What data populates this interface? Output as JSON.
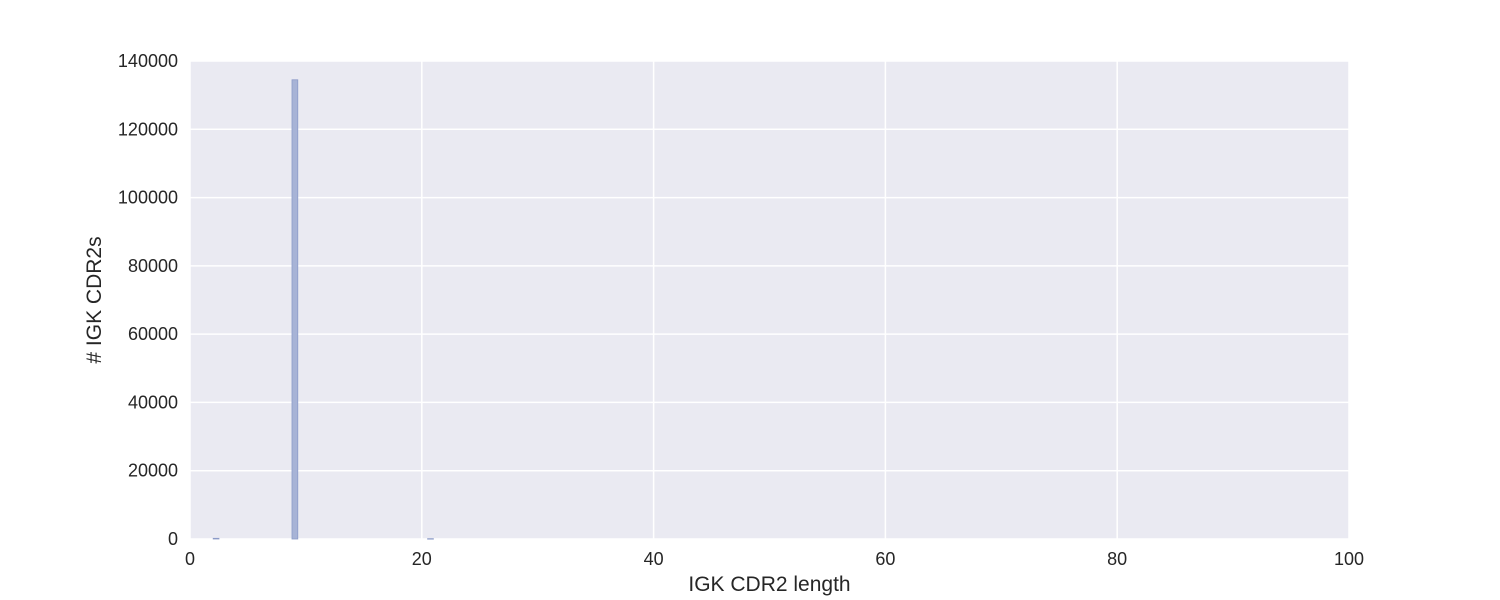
{
  "chart_data": {
    "type": "bar",
    "xlabel": "IGK CDR2 length",
    "ylabel": "# IGK CDR2s",
    "xlim": [
      0,
      100
    ],
    "ylim": [
      0,
      140000
    ],
    "xticks": [
      "0",
      "20",
      "40",
      "60",
      "80",
      "100"
    ],
    "yticks": [
      "0",
      "20000",
      "40000",
      "60000",
      "80000",
      "100000",
      "120000",
      "140000"
    ],
    "grid": true,
    "bins": [
      {
        "x0": 2,
        "x1": 2.5,
        "value": 200
      },
      {
        "x0": 8.8,
        "x1": 9.3,
        "value": 134500
      },
      {
        "x0": 20.5,
        "x1": 21.0,
        "value": 100
      }
    ],
    "colors": {
      "plot_background": "#eaeaf2",
      "grid": "#ffffff",
      "bar_fill": "#a7b3d6",
      "bar_edge": "#8c9bc8"
    }
  }
}
